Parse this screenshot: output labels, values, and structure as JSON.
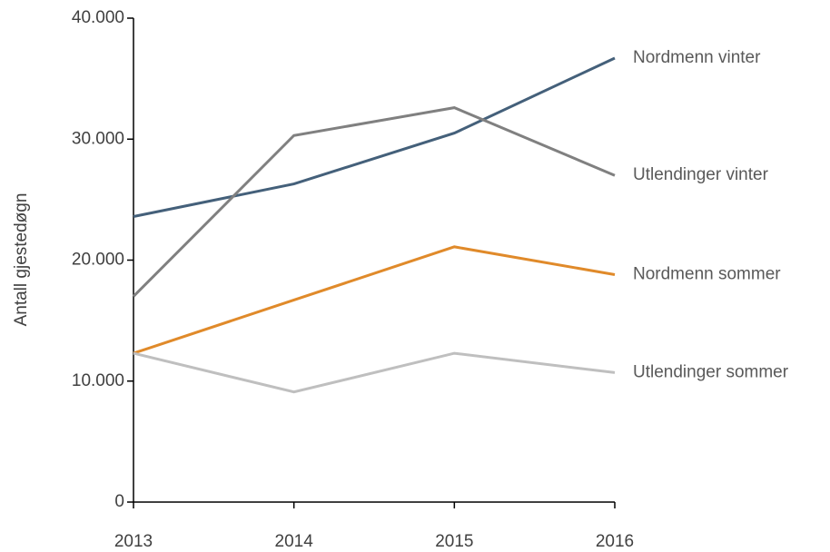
{
  "chart_data": {
    "type": "line",
    "y_label": "Antall gjestedøgn",
    "x": [
      2013,
      2014,
      2015,
      2016
    ],
    "xlim": [
      2013,
      2016
    ],
    "xticks": [
      2013,
      2014,
      2015,
      2016
    ],
    "ylim": [
      0,
      40000
    ],
    "yticks": [
      0,
      {
        "value": 10000,
        "label": "10.000"
      },
      {
        "value": 20000,
        "label": "20.000"
      },
      {
        "value": 30000,
        "label": "30.000"
      },
      {
        "value": 40000,
        "label": "40.000"
      }
    ],
    "series": [
      {
        "name": "Nordmenn vinter",
        "color": "#44607a",
        "values": [
          23600,
          26300,
          30500,
          36700
        ]
      },
      {
        "name": "Utlendinger vinter",
        "color": "#808080",
        "values": [
          17000,
          30300,
          32600,
          27000
        ]
      },
      {
        "name": "Nordmenn sommer",
        "color": "#e08a2a",
        "values": [
          12300,
          16700,
          21100,
          18800
        ]
      },
      {
        "name": "Utlendinger sommer",
        "color": "#bfbfbf",
        "values": [
          12300,
          9100,
          12300,
          10700
        ]
      }
    ]
  }
}
